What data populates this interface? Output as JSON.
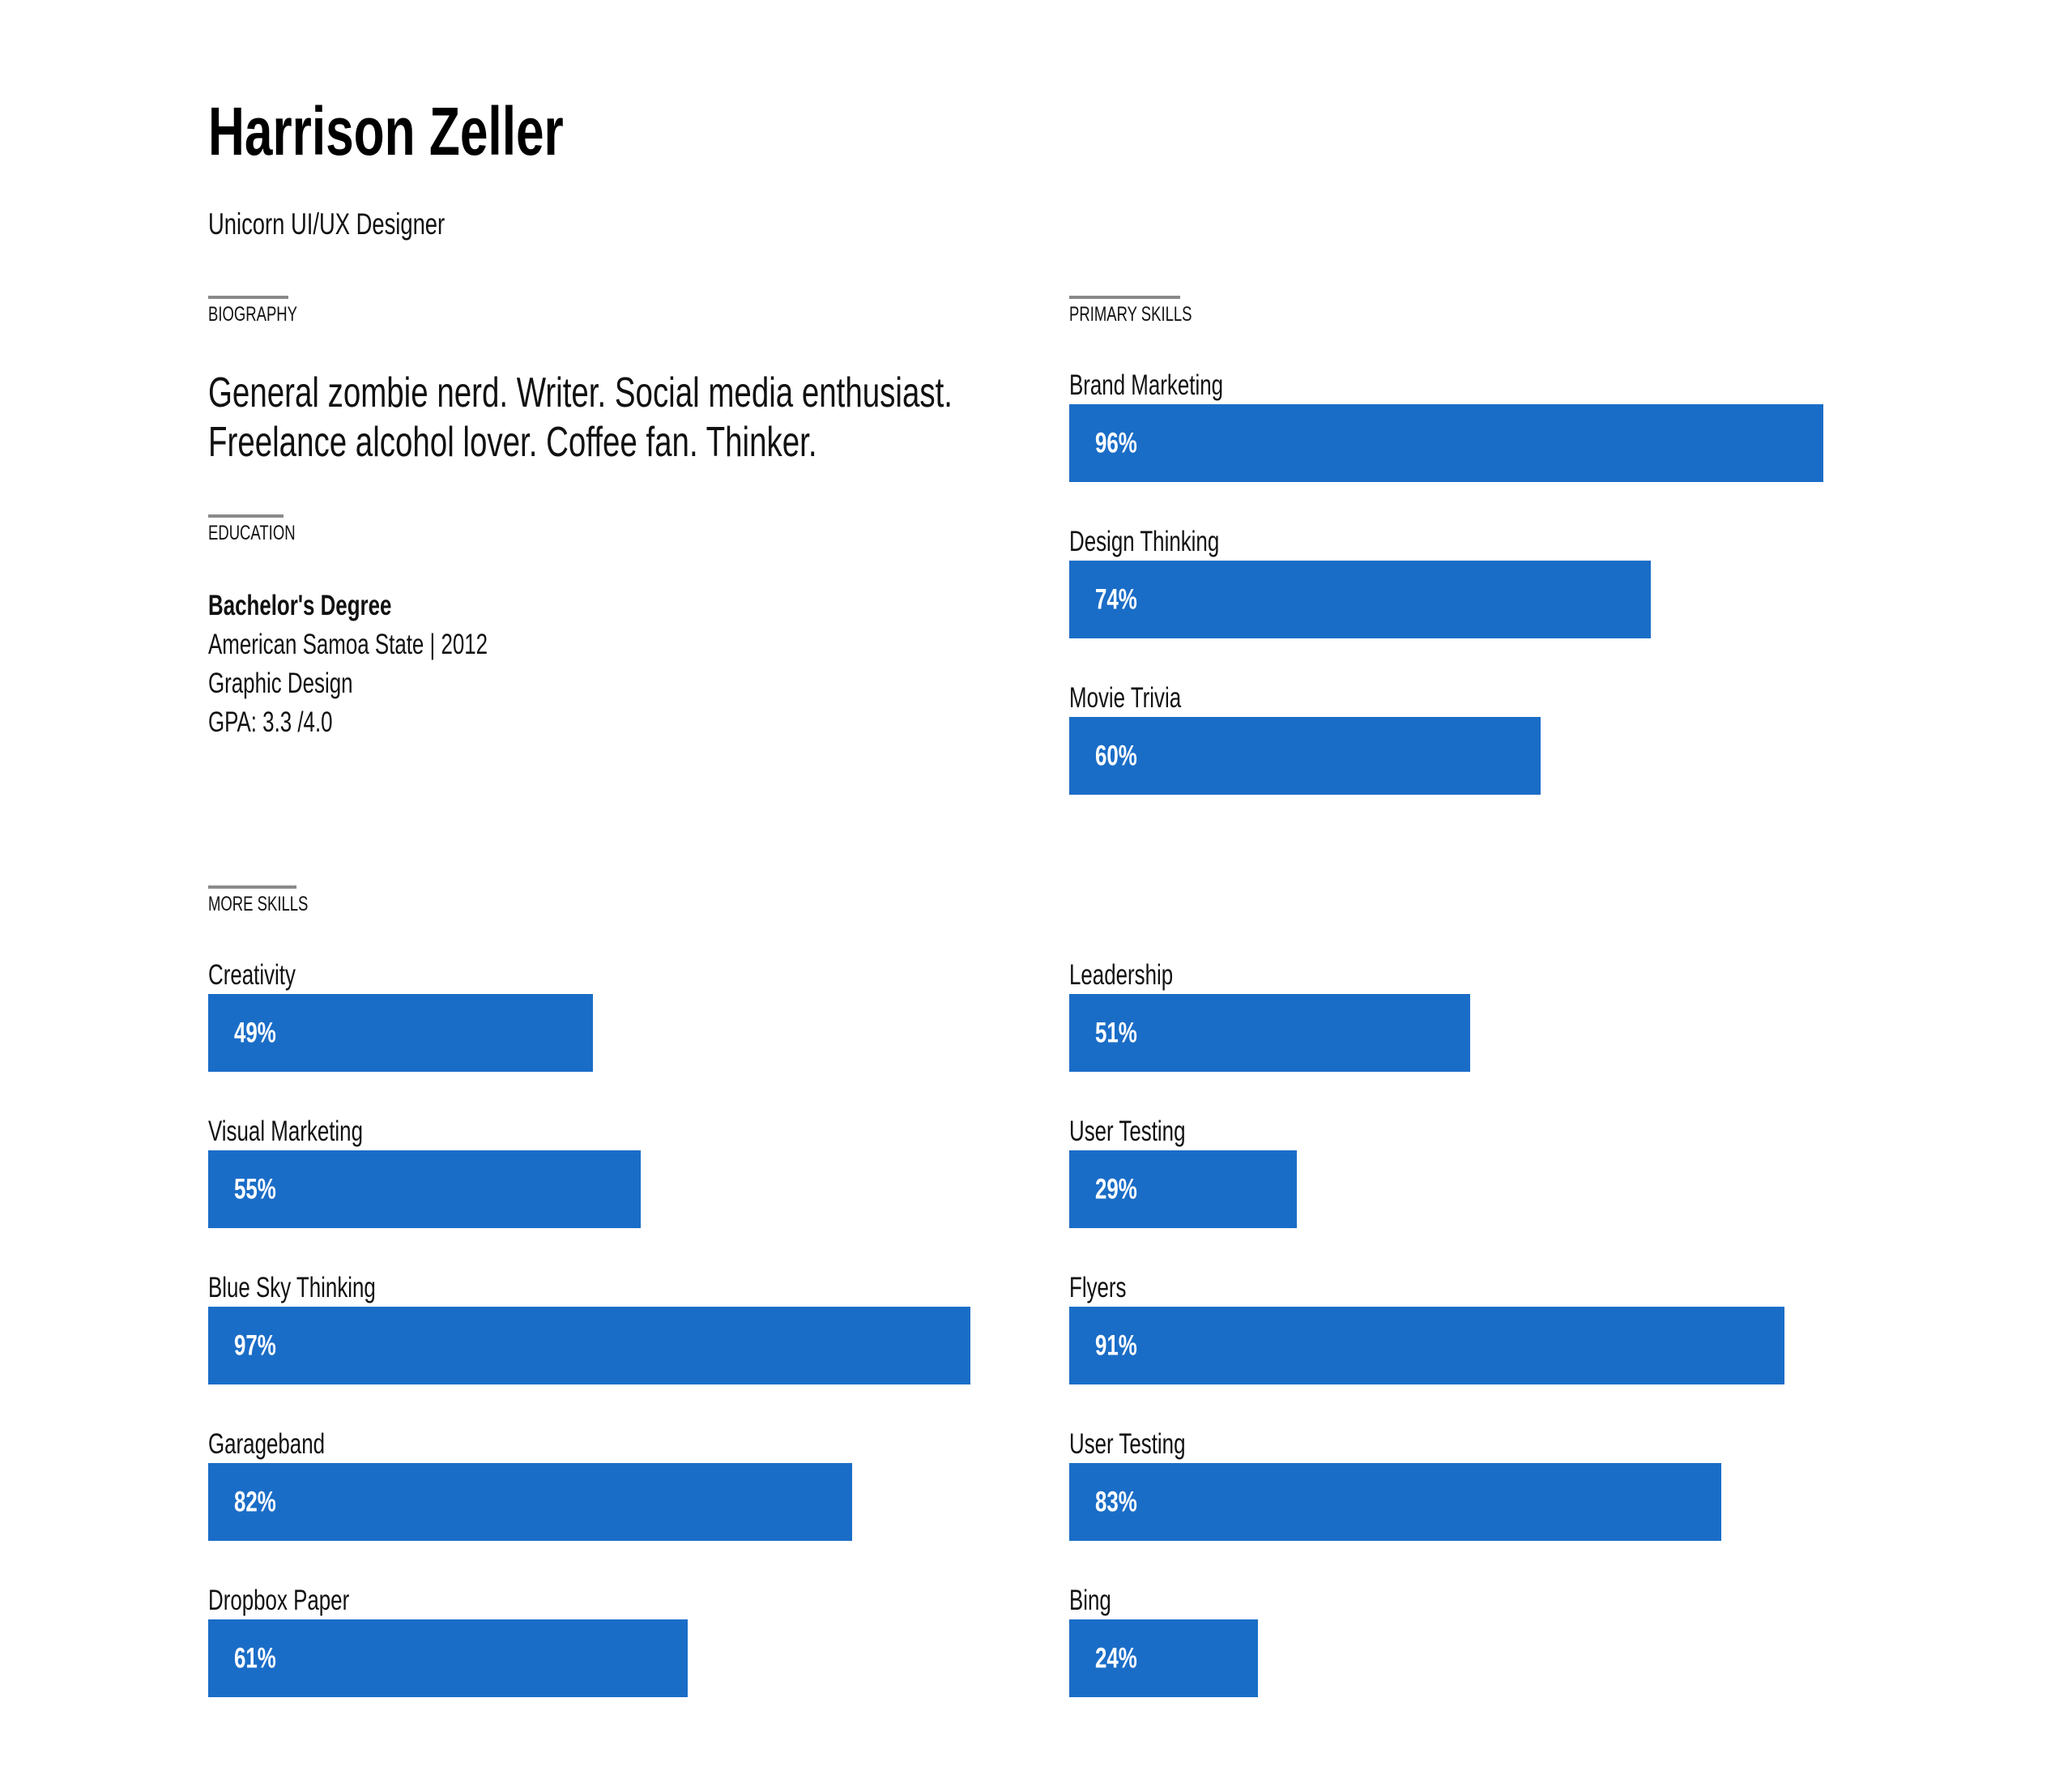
{
  "header": {
    "name": "Harrison Zeller",
    "tagline": "Unicorn UI/UX Designer"
  },
  "biography": {
    "heading": "BIOGRAPHY",
    "lines": [
      "General zombie nerd. Writer. Social media enthusiast.",
      "Freelance alcohol lover. Coffee fan. Thinker."
    ]
  },
  "education": {
    "heading": "EDUCATION",
    "degree": "Bachelor's Degree",
    "school": "American Samoa State | 2012",
    "field": "Graphic Design",
    "gpa": "GPA: 3.3 /4.0"
  },
  "primary_skills": {
    "heading": "PRIMARY SKILLS",
    "items": [
      {
        "label": "Brand Marketing",
        "percent": 96,
        "percent_label": "96%"
      },
      {
        "label": "Design Thinking",
        "percent": 74,
        "percent_label": "74%"
      },
      {
        "label": "Movie Trivia",
        "percent": 60,
        "percent_label": "60%"
      }
    ]
  },
  "more_skills": {
    "heading": "MORE SKILLS",
    "left": [
      {
        "label": "Creativity",
        "percent": 49,
        "percent_label": "49%"
      },
      {
        "label": "Visual Marketing",
        "percent": 55,
        "percent_label": "55%"
      },
      {
        "label": "Blue Sky Thinking",
        "percent": 97,
        "percent_label": "97%"
      },
      {
        "label": "Garageband",
        "percent": 82,
        "percent_label": "82%"
      },
      {
        "label": "Dropbox Paper",
        "percent": 61,
        "percent_label": "61%"
      }
    ],
    "right": [
      {
        "label": "Leadership",
        "percent": 51,
        "percent_label": "51%"
      },
      {
        "label": "User Testing",
        "percent": 29,
        "percent_label": "29%"
      },
      {
        "label": "Flyers",
        "percent": 91,
        "percent_label": "91%"
      },
      {
        "label": "User Testing",
        "percent": 83,
        "percent_label": "83%"
      },
      {
        "label": "Bing",
        "percent": 24,
        "percent_label": "24%"
      }
    ]
  },
  "colors": {
    "bar": "#1a6dc7",
    "rule": "#8a8a8a"
  }
}
